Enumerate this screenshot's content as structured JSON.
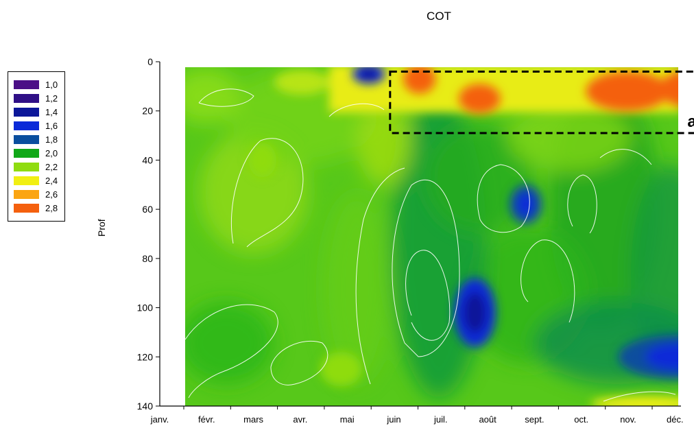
{
  "chart_data": {
    "type": "heatmap",
    "title": "COT",
    "ylabel": "Prof",
    "xlabel": "",
    "x_categories": [
      "janv.",
      "févr.",
      "mars",
      "avr.",
      "mai",
      "juin",
      "juil.",
      "août",
      "sept.",
      "oct.",
      "nov.",
      "déc."
    ],
    "y_ticks": [
      0,
      20,
      40,
      60,
      80,
      100,
      120,
      140
    ],
    "ylim": [
      0,
      140
    ],
    "y_inverted": true,
    "legend": {
      "placement": "left",
      "levels": [
        {
          "label": "1,0",
          "color": "#4b0f86"
        },
        {
          "label": "1,2",
          "color": "#2f0f86"
        },
        {
          "label": "1,4",
          "color": "#0c1799"
        },
        {
          "label": "1,6",
          "color": "#0a2ad8"
        },
        {
          "label": "1,8",
          "color": "#0a4e9e"
        },
        {
          "label": "2,0",
          "color": "#10a818"
        },
        {
          "label": "2,2",
          "color": "#8fdc10"
        },
        {
          "label": "2,4",
          "color": "#f1ef12"
        },
        {
          "label": "2,6",
          "color": "#fba512"
        },
        {
          "label": "2,8",
          "color": "#f4600e"
        }
      ]
    },
    "annotation": {
      "label": "a",
      "month_start": 4.3,
      "month_end": 11.0,
      "depth_start": 4,
      "depth_end": 29
    },
    "features": [
      {
        "cx": 5.1,
        "cy": 7,
        "rx": 0.35,
        "ry": 6,
        "value": 2.8
      },
      {
        "cx": 6.4,
        "cy": 15,
        "rx": 0.45,
        "ry": 6,
        "value": 2.8
      },
      {
        "cx": 9.6,
        "cy": 12,
        "rx": 0.9,
        "ry": 8,
        "value": 2.8
      },
      {
        "cx": 10.8,
        "cy": 11,
        "rx": 0.5,
        "ry": 7,
        "value": 2.7
      },
      {
        "cx": 6.3,
        "cy": 102,
        "rx": 0.45,
        "ry": 14,
        "value": 1.6
      },
      {
        "cx": 7.4,
        "cy": 58,
        "rx": 0.35,
        "ry": 8,
        "value": 1.8
      },
      {
        "cx": 4.0,
        "cy": 5,
        "rx": 0.35,
        "ry": 4,
        "value": 1.6
      },
      {
        "cx": 10.7,
        "cy": 120,
        "rx": 1.3,
        "ry": 9,
        "value": 1.8
      },
      {
        "cx": 1.7,
        "cy": 40,
        "rx": 0.3,
        "ry": 7,
        "value": 2.3
      },
      {
        "cx": 3.4,
        "cy": 125,
        "rx": 0.45,
        "ry": 7,
        "value": 2.3
      },
      {
        "cx": 10.0,
        "cy": 139,
        "rx": 1.2,
        "ry": 3,
        "value": 2.4
      }
    ]
  }
}
